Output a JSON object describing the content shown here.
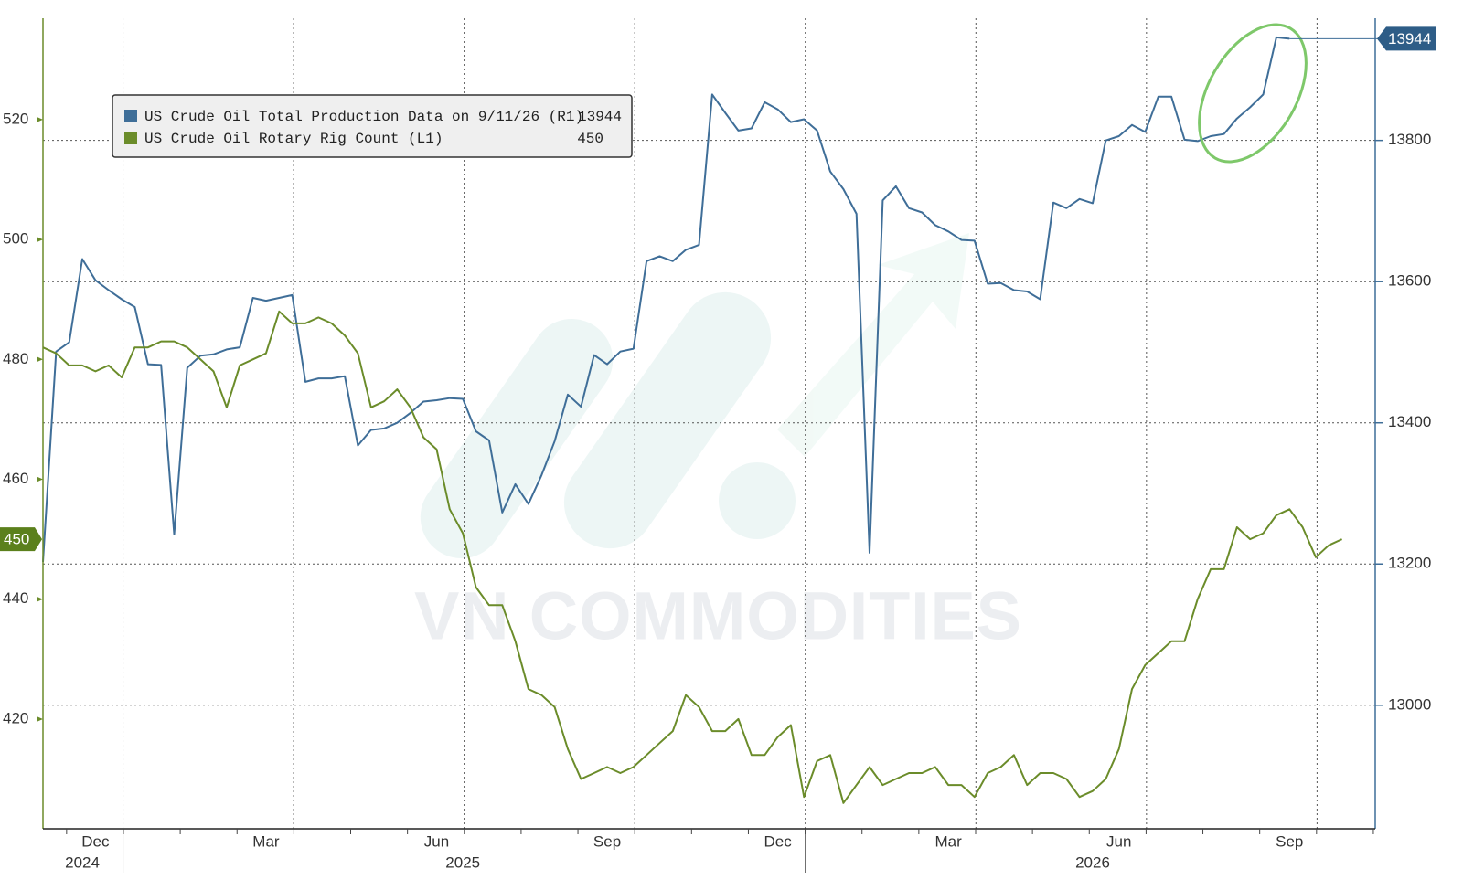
{
  "chart_data": {
    "type": "line",
    "categories": [
      null,
      null,
      null,
      null,
      "Dec",
      null,
      null,
      null,
      null,
      null,
      null,
      null,
      null,
      null,
      null,
      null,
      null,
      "Mar",
      null,
      null,
      null,
      null,
      null,
      null,
      null,
      null,
      null,
      null,
      null,
      null,
      "Jun",
      null,
      null,
      null,
      null,
      null,
      null,
      null,
      null,
      null,
      null,
      null,
      null,
      "Sep",
      null,
      null,
      null,
      null,
      null,
      null,
      null,
      null,
      null,
      null,
      null,
      null,
      "Dec",
      null,
      null,
      null,
      null,
      null,
      null,
      null,
      null,
      null,
      null,
      null,
      null,
      "Mar",
      null,
      null,
      null,
      null,
      null,
      null,
      null,
      null,
      null,
      null,
      null,
      null,
      "Jun",
      null,
      null,
      null,
      null,
      null,
      null,
      null,
      null,
      null,
      null,
      null,
      null,
      "Sep",
      null,
      null,
      null,
      null
    ],
    "year_labels": [
      null,
      null,
      null,
      "2024",
      null,
      null,
      null,
      null,
      null,
      null,
      null,
      null,
      null,
      null,
      null,
      null,
      null,
      null,
      null,
      null,
      null,
      null,
      null,
      null,
      null,
      null,
      null,
      null,
      null,
      null,
      null,
      null,
      "2025",
      null,
      null,
      null,
      null,
      null,
      null,
      null,
      null,
      null,
      null,
      null,
      null,
      null,
      null,
      null,
      null,
      null,
      null,
      null,
      null,
      null,
      null,
      null,
      null,
      null,
      null,
      null,
      null,
      null,
      null,
      null,
      null,
      null,
      null,
      null,
      null,
      null,
      null,
      null,
      null,
      null,
      null,
      null,
      null,
      null,
      null,
      null,
      "2026",
      null,
      null,
      null,
      null,
      null,
      null,
      null,
      null,
      null,
      null,
      null,
      null,
      null,
      null,
      null,
      null,
      null,
      null,
      null
    ],
    "series": [
      {
        "name": "US Crude Oil Total Production Data on 9/11/26 (R1)",
        "color": "#3f6e98",
        "axis": "y2",
        "values": [
          13203,
          13501,
          13514,
          13632,
          13602,
          13588,
          13575,
          13564,
          13483,
          13482,
          13242,
          13478,
          13495,
          13497,
          13504,
          13507,
          13577,
          13573,
          13577,
          13581,
          13458,
          13463,
          13463,
          13466,
          13368,
          13390,
          13392,
          13400,
          13414,
          13430,
          13432,
          13435,
          13434,
          13388,
          13375,
          13273,
          13313,
          13285,
          13326,
          13374,
          13440,
          13423,
          13496,
          13483,
          13501,
          13505,
          13629,
          13636,
          13629,
          13645,
          13652,
          13865,
          13839,
          13814,
          13817,
          13854,
          13844,
          13826,
          13830,
          13814,
          13756,
          13731,
          13696,
          13216,
          13715,
          13735,
          13704,
          13698,
          13680,
          13671,
          13659,
          13658,
          13597,
          13598,
          13588,
          13586,
          13575,
          13712,
          13704,
          13717,
          13711,
          13800,
          13806,
          13822,
          13812,
          13862,
          13862,
          13801,
          13799,
          13806,
          13809,
          13831,
          13847,
          13865,
          13946,
          13944,
          null,
          null,
          null,
          null
        ]
      },
      {
        "name": "US Crude Oil Rotary Rig Count (L1)",
        "color": "#6b8c2a",
        "axis": "y",
        "values": [
          482,
          481,
          479,
          479,
          478,
          479,
          477,
          482,
          482,
          483,
          483,
          482,
          480,
          478,
          472,
          479,
          480,
          481,
          488,
          486,
          486,
          487,
          486,
          484,
          481,
          472,
          473,
          475,
          472,
          467,
          465,
          455,
          451,
          442,
          439,
          439,
          433,
          425,
          424,
          422,
          415,
          410,
          411,
          412,
          411,
          412,
          414,
          416,
          418,
          424,
          422,
          418,
          418,
          420,
          414,
          414,
          417,
          419,
          407,
          413,
          414,
          406,
          409,
          412,
          409,
          410,
          411,
          411,
          412,
          409,
          409,
          407,
          411,
          412,
          414,
          409,
          411,
          411,
          410,
          407,
          408,
          410,
          415,
          425,
          429,
          431,
          433,
          433,
          440,
          445,
          445,
          452,
          450,
          451,
          454,
          455,
          452,
          447,
          449,
          450
        ]
      }
    ],
    "ylim": [
      401.7,
      536.9
    ],
    "yticks": [
      420,
      440,
      460,
      480,
      500,
      520
    ],
    "y2lim": [
      12825,
      13973
    ],
    "y2ticks": [
      13000,
      13200,
      13400,
      13600,
      13800
    ],
    "grid": true,
    "watermark": "VN COMMODITIES"
  }
}
